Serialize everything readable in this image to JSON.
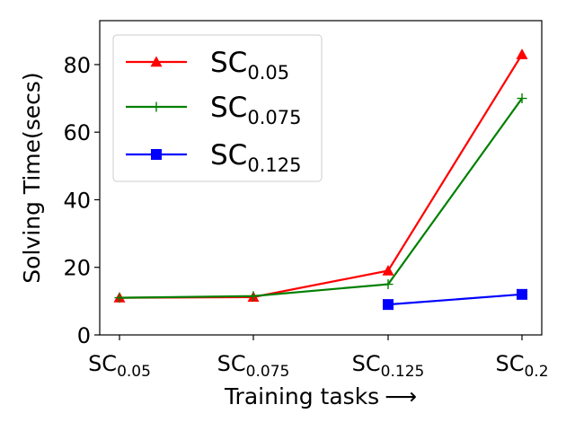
{
  "chart_data": {
    "type": "line",
    "title": "",
    "xlabel": "Training tasks",
    "xlabel_arrow": "⟶",
    "ylabel": "Solving Time(secs)",
    "ylim": [
      0,
      93
    ],
    "yticks": [
      0,
      20,
      40,
      60,
      80
    ],
    "categories": [
      {
        "base": "SC",
        "sub": "0.05"
      },
      {
        "base": "SC",
        "sub": "0.075"
      },
      {
        "base": "SC",
        "sub": "0.125"
      },
      {
        "base": "SC",
        "sub": "0.2"
      }
    ],
    "grid": false,
    "legend_position": "top-left",
    "series": [
      {
        "key": "sc005",
        "name": {
          "base": "SC",
          "sub": "0.05"
        },
        "color": "#ff0000",
        "marker": "triangle",
        "values": [
          11,
          11.2,
          19,
          83
        ]
      },
      {
        "key": "sc0075",
        "name": {
          "base": "SC",
          "sub": "0.075"
        },
        "color": "#008000",
        "marker": "plus",
        "values": [
          11,
          11.5,
          15,
          70
        ]
      },
      {
        "key": "sc0125",
        "name": {
          "base": "SC",
          "sub": "0.125"
        },
        "color": "#0000ff",
        "marker": "square",
        "values": [
          null,
          null,
          9,
          12
        ]
      }
    ]
  }
}
